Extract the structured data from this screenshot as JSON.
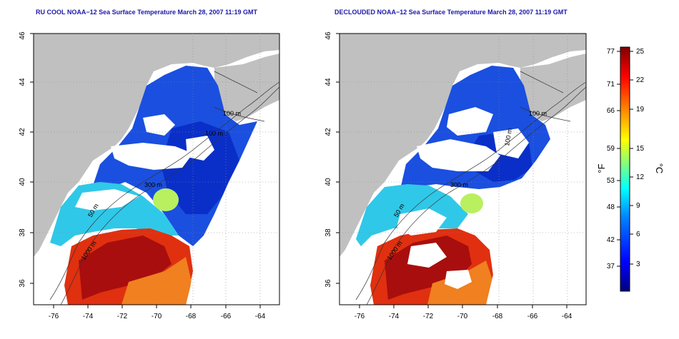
{
  "maps": [
    {
      "title": "RU COOL NOAA−12 Sea Surface Temperature March 28, 2007 11:19 GMT",
      "x_ticks": [
        "-76",
        "-74",
        "-72",
        "-70",
        "-68",
        "-66",
        "-64"
      ],
      "y_ticks": [
        "36",
        "38",
        "40",
        "42",
        "44",
        "46"
      ],
      "contour_labels": [
        "100 m",
        "100 m",
        "300 m",
        "50 m",
        "1000 m"
      ]
    },
    {
      "title": "DECLOUDED NOAA−12 Sea Surface Temperature March 28, 2007 11:19 GMT",
      "x_ticks": [
        "-76",
        "-74",
        "-72",
        "-70",
        "-68",
        "-66",
        "-64"
      ],
      "y_ticks": [
        "36",
        "38",
        "40",
        "42",
        "44",
        "46"
      ],
      "contour_labels": [
        "100 m",
        "100 m",
        "300 m",
        "50 m",
        "1000 m"
      ]
    }
  ],
  "colorbar": {
    "f_ticks": [
      "77",
      "71",
      "66",
      "59",
      "53",
      "48",
      "42",
      "37"
    ],
    "c_ticks": [
      "25",
      "22",
      "19",
      "15",
      "12",
      "9",
      "6",
      "3"
    ],
    "f_unit": "°F",
    "c_unit": "°C",
    "colors": [
      "#000080",
      "#0000ff",
      "#0080ff",
      "#00ffff",
      "#80ff80",
      "#ffff00",
      "#ff8000",
      "#ff0000",
      "#800000"
    ]
  },
  "colors": {
    "land": "#c0c0c0",
    "title": "#1d1aa8",
    "cloud": "#ffffff"
  }
}
